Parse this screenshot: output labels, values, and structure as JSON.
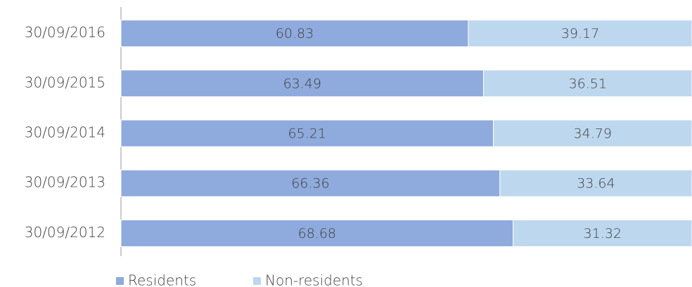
{
  "chart_data": {
    "type": "stacked-barh",
    "categories": [
      "30/09/2016",
      "30/09/2015",
      "30/09/2014",
      "30/09/2013",
      "30/09/2012"
    ],
    "series": [
      {
        "name": "Residents",
        "color": "#8faadc",
        "values": [
          60.83,
          63.49,
          65.21,
          66.36,
          68.68
        ]
      },
      {
        "name": "Non-residents",
        "color": "#bdd7ee",
        "values": [
          39.17,
          36.51,
          34.79,
          33.64,
          31.32
        ]
      }
    ]
  }
}
